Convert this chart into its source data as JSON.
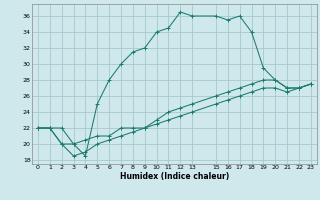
{
  "xlabel": "Humidex (Indice chaleur)",
  "bg_color": "#cfe8ec",
  "grid_color": "#a8c8cc",
  "line_color": "#1a7a6e",
  "xlim": [
    -0.5,
    23.5
  ],
  "ylim": [
    17.5,
    37.5
  ],
  "xticks": [
    0,
    1,
    2,
    3,
    4,
    5,
    6,
    7,
    8,
    9,
    10,
    11,
    12,
    13,
    15,
    16,
    17,
    18,
    19,
    20,
    21,
    22,
    23
  ],
  "yticks": [
    18,
    20,
    22,
    24,
    26,
    28,
    30,
    32,
    34,
    36
  ],
  "line1_x": [
    0,
    1,
    2,
    3,
    4,
    5,
    6,
    7,
    8,
    9,
    10,
    11,
    12,
    13,
    15,
    16,
    17,
    18,
    19,
    20,
    21,
    22,
    23
  ],
  "line1_y": [
    22,
    22,
    22,
    20,
    18.5,
    25,
    28,
    30,
    31.5,
    32,
    34,
    34.5,
    36.5,
    36,
    36,
    35.5,
    36,
    34,
    29.5,
    28,
    27,
    27,
    27.5
  ],
  "line2_x": [
    0,
    1,
    2,
    3,
    4,
    5,
    6,
    7,
    8,
    9,
    10,
    11,
    12,
    13,
    15,
    16,
    17,
    18,
    19,
    20,
    21,
    22,
    23
  ],
  "line2_y": [
    22,
    22,
    20,
    20,
    20.5,
    21,
    21,
    22,
    22,
    22,
    23,
    24,
    24.5,
    25,
    26,
    26.5,
    27,
    27.5,
    28,
    28,
    27,
    27,
    27.5
  ],
  "line3_x": [
    0,
    1,
    2,
    3,
    4,
    5,
    6,
    7,
    8,
    9,
    10,
    11,
    12,
    13,
    15,
    16,
    17,
    18,
    19,
    20,
    21,
    22,
    23
  ],
  "line3_y": [
    22,
    22,
    20,
    18.5,
    19,
    20,
    20.5,
    21,
    21.5,
    22,
    22.5,
    23,
    23.5,
    24,
    25,
    25.5,
    26,
    26.5,
    27,
    27,
    26.5,
    27,
    27.5
  ]
}
